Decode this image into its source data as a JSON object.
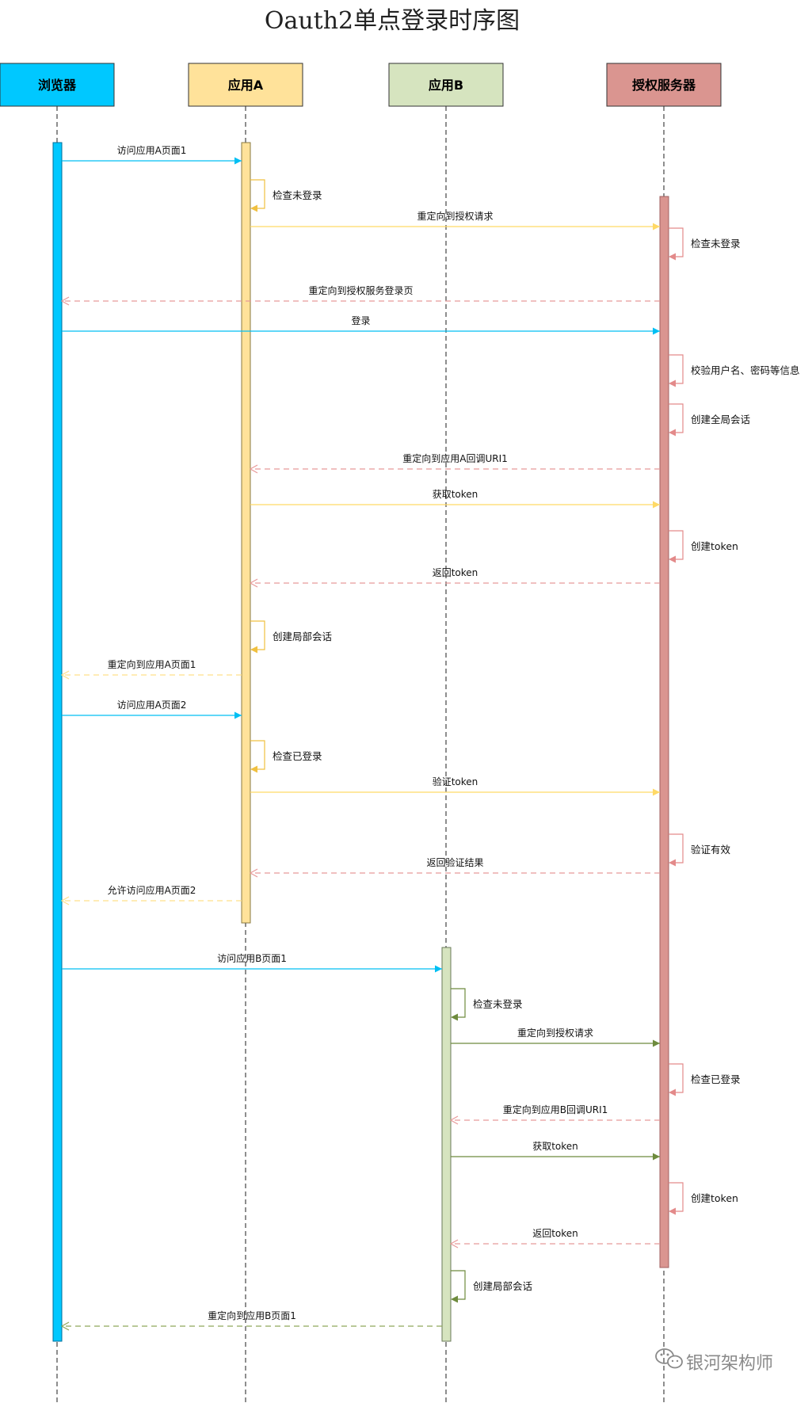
{
  "title": "Oauth2单点登录时序图",
  "watermark": "银河架构师",
  "actors": [
    {
      "id": "browser",
      "label": "浏览器",
      "color": "#00C8FF"
    },
    {
      "id": "appA",
      "label": "应用A",
      "color": "#FFE29A"
    },
    {
      "id": "appB",
      "label": "应用B",
      "color": "#D6E4BF"
    },
    {
      "id": "auth",
      "label": "授权服务器",
      "color": "#DA9590"
    }
  ],
  "messages": [
    {
      "kind": "call",
      "from": "browser",
      "to": "appA",
      "label": "访问应用A页面1"
    },
    {
      "kind": "self",
      "on": "appA",
      "label": "检查未登录"
    },
    {
      "kind": "call",
      "from": "appA",
      "to": "auth",
      "label": "重定向到授权请求"
    },
    {
      "kind": "self",
      "on": "auth",
      "label": "检查未登录"
    },
    {
      "kind": "return",
      "from": "auth",
      "to": "browser",
      "label": "重定向到授权服务登录页"
    },
    {
      "kind": "call",
      "from": "browser",
      "to": "auth",
      "label": "登录"
    },
    {
      "kind": "self",
      "on": "auth",
      "label": "校验用户名、密码等信息"
    },
    {
      "kind": "self",
      "on": "auth",
      "label": "创建全局会话"
    },
    {
      "kind": "return",
      "from": "auth",
      "to": "appA",
      "label": "重定向到应用A回调URI1"
    },
    {
      "kind": "call",
      "from": "appA",
      "to": "auth",
      "label": "获取token"
    },
    {
      "kind": "self",
      "on": "auth",
      "label": "创建token"
    },
    {
      "kind": "return",
      "from": "auth",
      "to": "appA",
      "label": "返回token"
    },
    {
      "kind": "self",
      "on": "appA",
      "label": "创建局部会话"
    },
    {
      "kind": "return",
      "from": "appA",
      "to": "browser",
      "label": "重定向到应用A页面1"
    },
    {
      "kind": "call",
      "from": "browser",
      "to": "appA",
      "label": "访问应用A页面2"
    },
    {
      "kind": "self",
      "on": "appA",
      "label": "检查已登录"
    },
    {
      "kind": "call",
      "from": "appA",
      "to": "auth",
      "label": "验证token"
    },
    {
      "kind": "self",
      "on": "auth",
      "label": "验证有效"
    },
    {
      "kind": "return",
      "from": "auth",
      "to": "appA",
      "label": "返回验证结果"
    },
    {
      "kind": "return",
      "from": "appA",
      "to": "browser",
      "label": "允许访问应用A页面2"
    },
    {
      "kind": "call",
      "from": "browser",
      "to": "appB",
      "label": "访问应用B页面1"
    },
    {
      "kind": "self",
      "on": "appB",
      "label": "检查未登录"
    },
    {
      "kind": "call",
      "from": "appB",
      "to": "auth",
      "label": "重定向到授权请求"
    },
    {
      "kind": "self",
      "on": "auth",
      "label": "检查已登录"
    },
    {
      "kind": "return",
      "from": "auth",
      "to": "appB",
      "label": "重定向到应用B回调URI1"
    },
    {
      "kind": "call",
      "from": "appB",
      "to": "auth",
      "label": "获取token"
    },
    {
      "kind": "self",
      "on": "auth",
      "label": "创建token"
    },
    {
      "kind": "return",
      "from": "auth",
      "to": "appB",
      "label": "返回token"
    },
    {
      "kind": "self",
      "on": "appB",
      "label": "创建局部会话"
    },
    {
      "kind": "return",
      "from": "appB",
      "to": "browser",
      "label": "重定向到应用B页面1"
    }
  ]
}
